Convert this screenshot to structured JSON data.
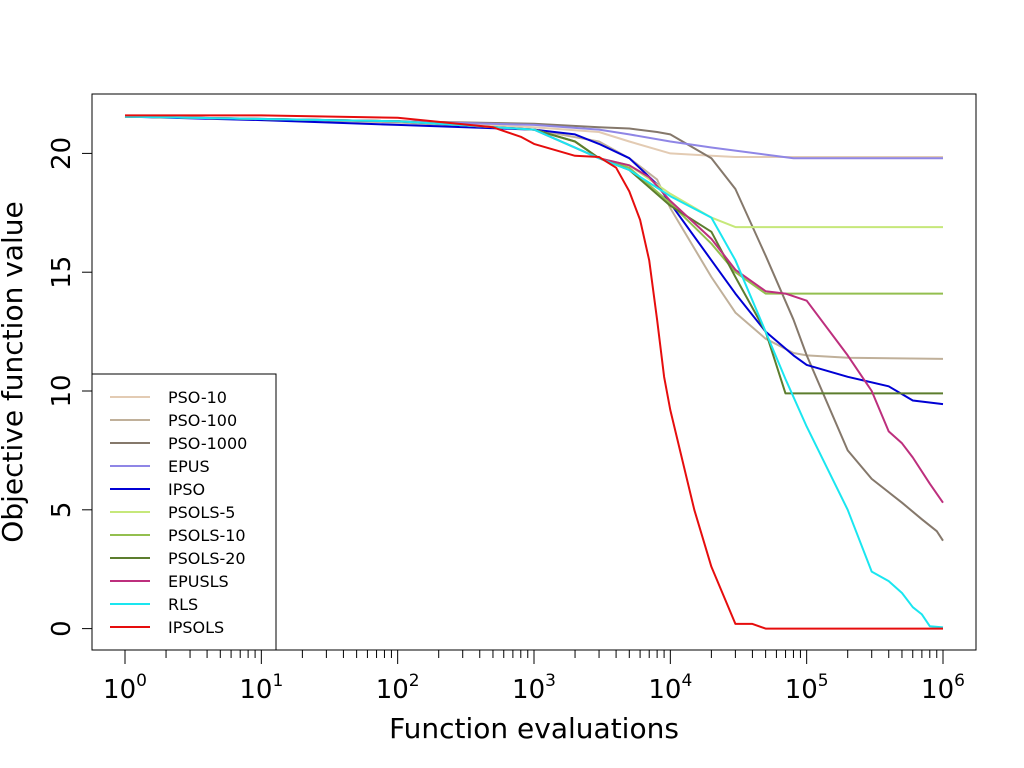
{
  "chart_data": {
    "type": "line",
    "title": "",
    "xlabel": "Function evaluations",
    "ylabel": "Objective function value",
    "xscale": "log10",
    "xlim": [
      1,
      1000000
    ],
    "ylim": [
      -0.9,
      22.5
    ],
    "xticks": [
      {
        "base": "10",
        "exp": "0",
        "value": 1
      },
      {
        "base": "10",
        "exp": "1",
        "value": 10
      },
      {
        "base": "10",
        "exp": "2",
        "value": 100
      },
      {
        "base": "10",
        "exp": "3",
        "value": 1000
      },
      {
        "base": "10",
        "exp": "4",
        "value": 10000
      },
      {
        "base": "10",
        "exp": "5",
        "value": 100000
      },
      {
        "base": "10",
        "exp": "6",
        "value": 1000000
      }
    ],
    "yticks": [
      "0",
      "5",
      "10",
      "15",
      "20"
    ],
    "yticks_values": [
      0,
      5,
      10,
      15,
      20
    ],
    "grid": false,
    "legend_position": "bottom-left",
    "series": [
      {
        "name": "PSO-10",
        "color": "#e3cbb3",
        "points": [
          [
            1,
            21.55
          ],
          [
            10,
            21.45
          ],
          [
            100,
            21.35
          ],
          [
            1000,
            21.1
          ],
          [
            3000,
            20.9
          ],
          [
            5000,
            20.5
          ],
          [
            10000,
            20.0
          ],
          [
            20000,
            19.9
          ],
          [
            30000,
            19.85
          ],
          [
            100000,
            19.85
          ],
          [
            1000000,
            19.85
          ]
        ]
      },
      {
        "name": "PSO-100",
        "color": "#c0b09a",
        "points": [
          [
            1,
            21.55
          ],
          [
            10,
            21.45
          ],
          [
            100,
            21.3
          ],
          [
            1000,
            21.0
          ],
          [
            3000,
            20.5
          ],
          [
            5000,
            19.8
          ],
          [
            8000,
            18.9
          ],
          [
            10000,
            17.7
          ],
          [
            20000,
            14.8
          ],
          [
            30000,
            13.3
          ],
          [
            50000,
            12.2
          ],
          [
            80000,
            11.6
          ],
          [
            100000,
            11.5
          ],
          [
            200000,
            11.4
          ],
          [
            1000000,
            11.35
          ]
        ]
      },
      {
        "name": "PSO-1000",
        "color": "#85786b",
        "points": [
          [
            1,
            21.55
          ],
          [
            10,
            21.45
          ],
          [
            100,
            21.35
          ],
          [
            1000,
            21.25
          ],
          [
            3000,
            21.1
          ],
          [
            5000,
            21.05
          ],
          [
            8000,
            20.9
          ],
          [
            10000,
            20.8
          ],
          [
            20000,
            19.8
          ],
          [
            30000,
            18.5
          ],
          [
            50000,
            15.7
          ],
          [
            80000,
            13.0
          ],
          [
            100000,
            11.5
          ],
          [
            200000,
            7.5
          ],
          [
            300000,
            6.3
          ],
          [
            500000,
            5.3
          ],
          [
            700000,
            4.6
          ],
          [
            900000,
            4.1
          ],
          [
            1000000,
            3.7
          ]
        ]
      },
      {
        "name": "EPUS",
        "color": "#8f86e6",
        "points": [
          [
            1,
            21.55
          ],
          [
            10,
            21.45
          ],
          [
            100,
            21.35
          ],
          [
            1000,
            21.2
          ],
          [
            3000,
            21.0
          ],
          [
            5000,
            20.8
          ],
          [
            10000,
            20.5
          ],
          [
            20000,
            20.25
          ],
          [
            50000,
            19.95
          ],
          [
            80000,
            19.8
          ],
          [
            100000,
            19.8
          ],
          [
            1000000,
            19.8
          ]
        ]
      },
      {
        "name": "IPSO",
        "color": "#0000d4",
        "points": [
          [
            1,
            21.55
          ],
          [
            10,
            21.4
          ],
          [
            100,
            21.2
          ],
          [
            1000,
            21.0
          ],
          [
            2000,
            20.8
          ],
          [
            3000,
            20.4
          ],
          [
            5000,
            19.8
          ],
          [
            8000,
            18.7
          ],
          [
            10000,
            17.9
          ],
          [
            20000,
            15.5
          ],
          [
            30000,
            14.1
          ],
          [
            50000,
            12.5
          ],
          [
            80000,
            11.5
          ],
          [
            100000,
            11.1
          ],
          [
            200000,
            10.6
          ],
          [
            400000,
            10.2
          ],
          [
            600000,
            9.6
          ],
          [
            1000000,
            9.45
          ]
        ]
      },
      {
        "name": "PSOLS-5",
        "color": "#c6e87a",
        "points": [
          [
            1,
            21.55
          ],
          [
            100,
            21.35
          ],
          [
            1000,
            21.0
          ],
          [
            2000,
            20.5
          ],
          [
            3000,
            19.8
          ],
          [
            5000,
            19.5
          ],
          [
            10000,
            18.3
          ],
          [
            20000,
            17.3
          ],
          [
            30000,
            16.9
          ],
          [
            100000,
            16.9
          ],
          [
            1000000,
            16.9
          ]
        ]
      },
      {
        "name": "PSOLS-10",
        "color": "#93bf4f",
        "points": [
          [
            1,
            21.55
          ],
          [
            100,
            21.35
          ],
          [
            1000,
            21.0
          ],
          [
            2000,
            20.5
          ],
          [
            3000,
            19.8
          ],
          [
            5000,
            19.4
          ],
          [
            10000,
            17.9
          ],
          [
            20000,
            16.2
          ],
          [
            30000,
            15.0
          ],
          [
            50000,
            14.1
          ],
          [
            100000,
            14.1
          ],
          [
            1000000,
            14.1
          ]
        ]
      },
      {
        "name": "PSOLS-20",
        "color": "#5c7d2e",
        "points": [
          [
            1,
            21.55
          ],
          [
            100,
            21.35
          ],
          [
            1000,
            21.0
          ],
          [
            2000,
            20.5
          ],
          [
            3000,
            19.8
          ],
          [
            5000,
            19.3
          ],
          [
            10000,
            17.8
          ],
          [
            20000,
            16.7
          ],
          [
            30000,
            14.8
          ],
          [
            50000,
            12.5
          ],
          [
            70000,
            9.9
          ],
          [
            100000,
            9.9
          ],
          [
            1000000,
            9.9
          ]
        ]
      },
      {
        "name": "EPUSLS",
        "color": "#bd2f7d",
        "points": [
          [
            1,
            21.55
          ],
          [
            100,
            21.35
          ],
          [
            1000,
            21.0
          ],
          [
            3000,
            19.8
          ],
          [
            5000,
            19.5
          ],
          [
            7000,
            19.0
          ],
          [
            10000,
            18.0
          ],
          [
            20000,
            16.4
          ],
          [
            30000,
            15.1
          ],
          [
            50000,
            14.2
          ],
          [
            70000,
            14.1
          ],
          [
            100000,
            13.8
          ],
          [
            200000,
            11.5
          ],
          [
            300000,
            10.0
          ],
          [
            400000,
            8.3
          ],
          [
            500000,
            7.8
          ],
          [
            600000,
            7.2
          ],
          [
            800000,
            6.1
          ],
          [
            1000000,
            5.3
          ]
        ]
      },
      {
        "name": "RLS",
        "color": "#1ae6f0",
        "points": [
          [
            1,
            21.55
          ],
          [
            100,
            21.35
          ],
          [
            1000,
            21.0
          ],
          [
            3000,
            19.8
          ],
          [
            5000,
            19.3
          ],
          [
            10000,
            18.2
          ],
          [
            20000,
            17.3
          ],
          [
            30000,
            15.5
          ],
          [
            50000,
            12.5
          ],
          [
            70000,
            10.5
          ],
          [
            100000,
            8.5
          ],
          [
            200000,
            5.0
          ],
          [
            300000,
            2.4
          ],
          [
            400000,
            2.0
          ],
          [
            500000,
            1.5
          ],
          [
            600000,
            0.9
          ],
          [
            700000,
            0.6
          ],
          [
            800000,
            0.1
          ],
          [
            1000000,
            0.05
          ]
        ]
      },
      {
        "name": "IPSOLS",
        "color": "#e60d0d",
        "points": [
          [
            1,
            21.6
          ],
          [
            10,
            21.6
          ],
          [
            100,
            21.5
          ],
          [
            500,
            21.1
          ],
          [
            800,
            20.7
          ],
          [
            1000,
            20.4
          ],
          [
            2000,
            19.9
          ],
          [
            3000,
            19.85
          ],
          [
            4000,
            19.4
          ],
          [
            5000,
            18.4
          ],
          [
            6000,
            17.2
          ],
          [
            7000,
            15.5
          ],
          [
            8000,
            13.0
          ],
          [
            9000,
            10.6
          ],
          [
            10000,
            9.2
          ],
          [
            15000,
            5.0
          ],
          [
            20000,
            2.6
          ],
          [
            30000,
            0.2
          ],
          [
            40000,
            0.2
          ],
          [
            50000,
            0.0
          ],
          [
            100000,
            0.0
          ],
          [
            1000000,
            0.0
          ]
        ]
      }
    ]
  }
}
